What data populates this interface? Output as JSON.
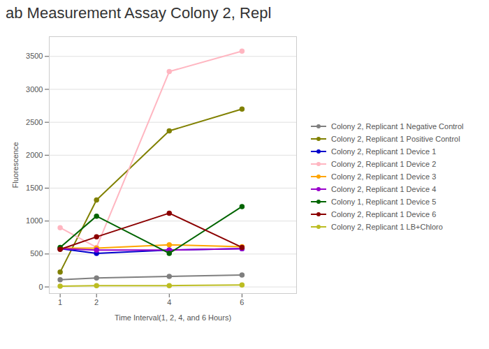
{
  "chart_data": {
    "type": "line",
    "title": "ab Measurement Assay Colony 2, Repl",
    "xlabel": "Time Interval(1, 2, 4, and 6 Hours)",
    "ylabel": "Fluorescence",
    "x": [
      1,
      2,
      4,
      6
    ],
    "series": [
      {
        "name": "Colony 2, Replicant 1 Negative Control",
        "color": "#7f7f7f",
        "values": [
          110,
          135,
          160,
          180
        ]
      },
      {
        "name": "Colony 2, Replicant 1 Positive Control",
        "color": "#808000",
        "values": [
          225,
          1320,
          2370,
          2700
        ]
      },
      {
        "name": "Colony 2, Replicant 1 Device 1",
        "color": "#0000cc",
        "values": [
          580,
          510,
          560,
          580
        ]
      },
      {
        "name": "Colony 2, Replicant 1 Device 2",
        "color": "#ffb6c1",
        "values": [
          900,
          600,
          3270,
          3580
        ]
      },
      {
        "name": "Colony 2, Replicant 1 Device 3",
        "color": "#ffa500",
        "values": [
          590,
          590,
          640,
          610
        ]
      },
      {
        "name": "Colony 2, Replicant 1 Device 4",
        "color": "#9900cc",
        "values": [
          580,
          560,
          560,
          580
        ]
      },
      {
        "name": "Colony 1, Replicant 1 Device 5",
        "color": "#006400",
        "values": [
          600,
          1075,
          510,
          1220
        ]
      },
      {
        "name": "Colony 2, Replicant 1 Device 6",
        "color": "#8B0000",
        "values": [
          570,
          760,
          1120,
          600
        ]
      },
      {
        "name": "Colony 2, Replicant 1 LB+Chloro",
        "color": "#bcbd22",
        "values": [
          10,
          20,
          20,
          30
        ]
      }
    ],
    "xlim": [
      0.7,
      7.5
    ],
    "ylim": [
      -100,
      3800
    ],
    "xticks": [
      1,
      2,
      4,
      6
    ],
    "yticks": [
      0,
      500,
      1000,
      1500,
      2000,
      2500,
      3000,
      3500
    ],
    "grid": "y",
    "legend": "right",
    "marker": "circle"
  }
}
